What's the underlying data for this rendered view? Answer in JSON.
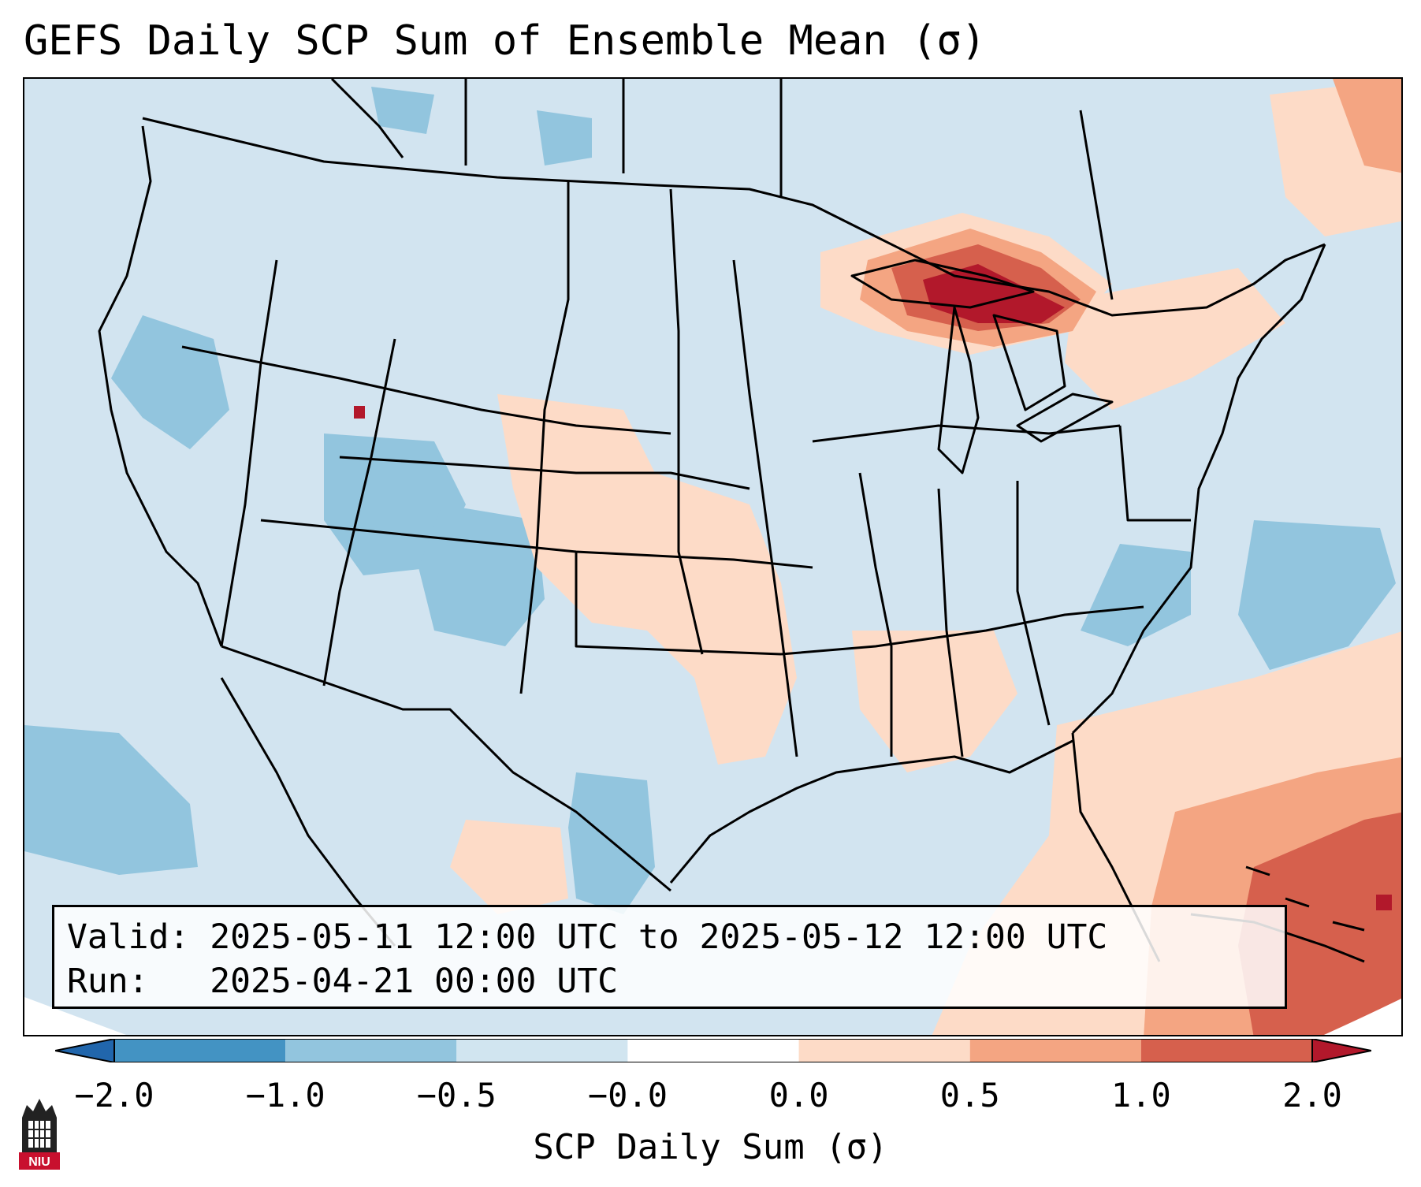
{
  "title": "GEFS Daily SCP Sum of Ensemble Mean (σ)",
  "info": {
    "valid_label": "Valid:",
    "valid_value": "2025-05-11 12:00 UTC to 2025-05-12 12:00 UTC",
    "run_label": "Run:",
    "run_value": "2025-04-21 00:00 UTC"
  },
  "colorbar": {
    "label": "SCP Daily Sum (σ)",
    "ticks": [
      "−2.0",
      "−1.0",
      "−0.5",
      "−0.0",
      "0.0",
      "0.5",
      "1.0",
      "2.0"
    ],
    "colors": [
      "#2166ac",
      "#4393c3",
      "#92c5de",
      "#d1e5f0",
      "#ffffff",
      "#fddbc7",
      "#f4a582",
      "#d6604d",
      "#b2182b"
    ]
  },
  "map": {
    "background_color": "#d2e4f0",
    "pattern_colors": {
      "light_blue": "#92c5de",
      "pale_red": "#fddbc7",
      "salmon": "#f4a582",
      "red": "#d6604d",
      "dark_red": "#b2182b"
    }
  },
  "logo": {
    "text": "NIU",
    "icon": "niu-tower-icon"
  }
}
